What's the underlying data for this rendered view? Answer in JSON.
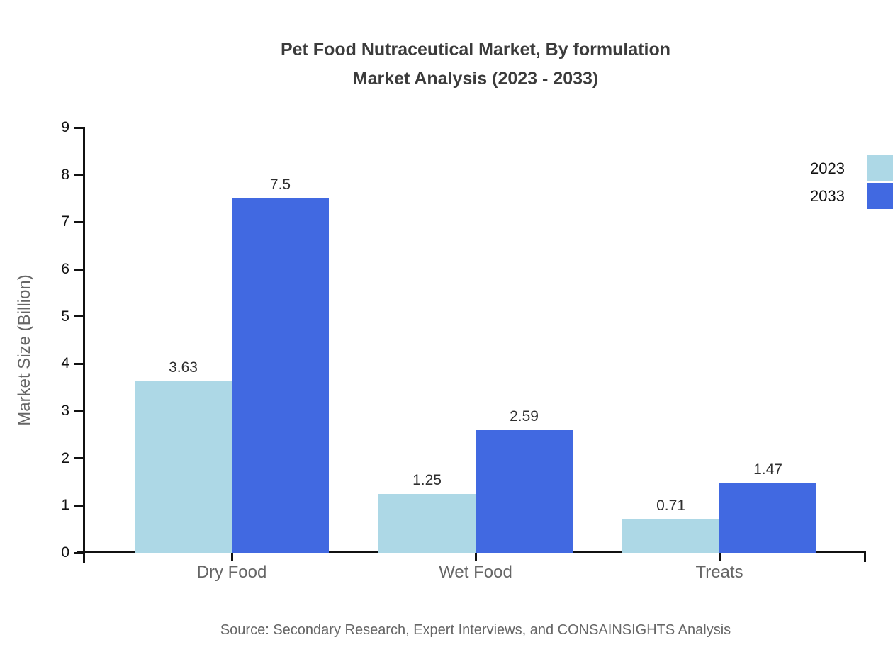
{
  "title": {
    "line1": "Pet Food Nutraceutical Market, By formulation",
    "line2": "Market Analysis (2023 - 2033)"
  },
  "source": "Source: Secondary Research, Expert Interviews, and CONSAINSIGHTS Analysis",
  "chart_data": {
    "type": "bar",
    "title": "Pet Food Nutraceutical Market, By formulation Market Analysis (2023 - 2033)",
    "categories": [
      "Dry Food",
      "Wet Food",
      "Treats"
    ],
    "series": [
      {
        "name": "2023",
        "color": "#ADD8E6",
        "values": [
          3.63,
          1.25,
          0.71
        ]
      },
      {
        "name": "2033",
        "color": "#4169E1",
        "values": [
          7.5,
          2.59,
          1.47
        ]
      }
    ],
    "xlabel": "",
    "ylabel": "Market Size (Billion)",
    "ylim": [
      0,
      9
    ],
    "ytick_step": 1,
    "yticks": [
      0,
      1,
      2,
      3,
      4,
      5,
      6,
      7,
      8,
      9
    ],
    "grid": false,
    "legend_position": "top-right",
    "value_labels_shown": true
  }
}
